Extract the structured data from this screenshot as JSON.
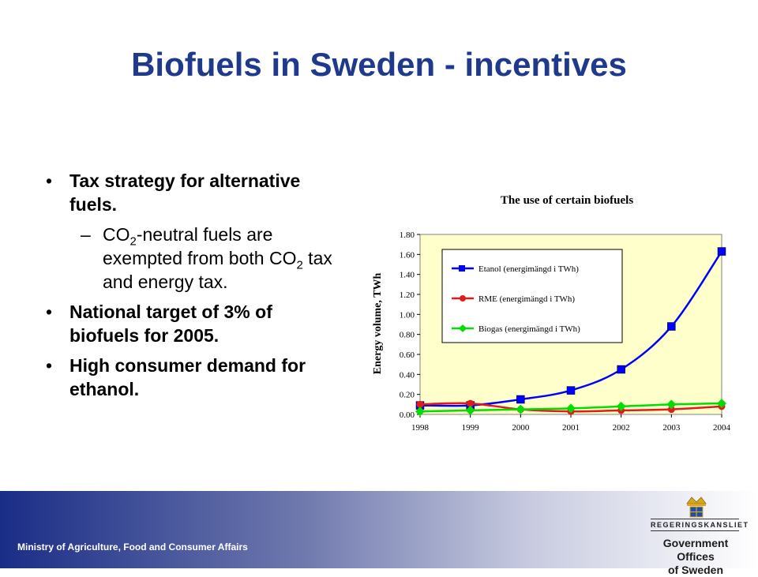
{
  "slide": {
    "title": "Biofuels in Sweden - incentives",
    "bullets": {
      "b1": "Tax strategy for alternative fuels.",
      "sub1_a": "CO",
      "sub1_sub": "2",
      "sub1_b": "-neutral fuels are exempted from both ",
      "sub1_c": "CO",
      "sub1_sub2": "2",
      "sub1_d": " tax and energy tax.",
      "b2": "National target of 3% of biofuels for 2005.",
      "b3": "High consumer demand for ethanol."
    },
    "footer": {
      "ministry": "Ministry of Agriculture, Food and Consumer Affairs",
      "regeringskansliet": "REGERINGSKANSLIET",
      "gov_line1": "Government Offices",
      "gov_line2": "of Sweden"
    }
  },
  "colors": {
    "title": "#1f3a8c",
    "plot_bg": "#ffffcc",
    "etanol": "#0000ff",
    "rme": "#e31a1c",
    "biogas": "#00dd00"
  },
  "chart_data": {
    "type": "line",
    "title": "The use of certain biofuels",
    "xlabel": "",
    "ylabel": "Energy volume, TWh",
    "categories": [
      "1998",
      "1999",
      "2000",
      "2001",
      "2002",
      "2003",
      "2004"
    ],
    "ylim": [
      0,
      1.8
    ],
    "yticks": [
      "0.00",
      "0.20",
      "0.40",
      "0.60",
      "0.80",
      "1.00",
      "1.20",
      "1.40",
      "1.60",
      "1.80"
    ],
    "legend_position": "top-left",
    "grid": false,
    "series": [
      {
        "name": "Etanol (energimängd i TWh)",
        "values": [
          0.09,
          0.09,
          0.15,
          0.24,
          0.45,
          0.88,
          1.63
        ],
        "marker": "square"
      },
      {
        "name": "RME (energimängd i TWh)",
        "values": [
          0.1,
          0.11,
          0.05,
          0.03,
          0.04,
          0.05,
          0.08
        ],
        "marker": "circle"
      },
      {
        "name": "Biogas (energimängd i TWh)",
        "values": [
          0.03,
          0.04,
          0.05,
          0.06,
          0.08,
          0.1,
          0.11
        ],
        "marker": "diamond"
      }
    ]
  }
}
